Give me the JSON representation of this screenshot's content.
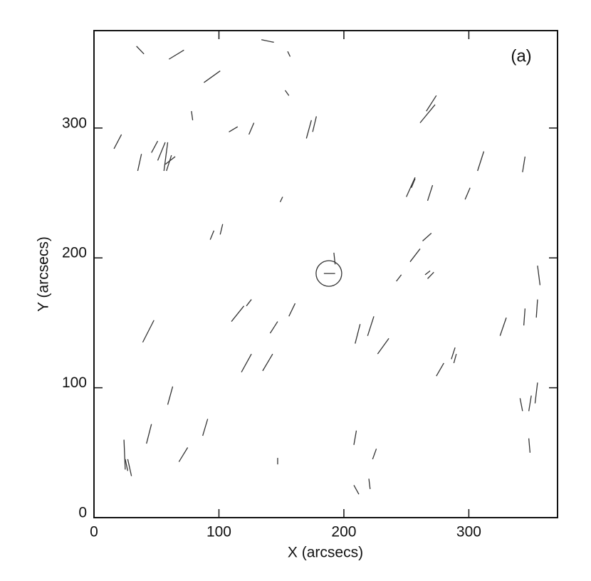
{
  "chart_data": {
    "type": "segments",
    "x_label": "X (arcsecs)",
    "y_label": "Y (arcsecs)",
    "annotation": "(a)",
    "xlim": [
      0,
      371
    ],
    "ylim": [
      0,
      375
    ],
    "xticks": [
      0,
      100,
      200,
      300
    ],
    "yticks": [
      0,
      100,
      200,
      300
    ],
    "color": "#333333",
    "circle": {
      "x": 188,
      "y": 188
    },
    "segments": {
      "x1": [
        34,
        60,
        134,
        155,
        88,
        153,
        78,
        108,
        124,
        170,
        175,
        261,
        266,
        16,
        35,
        46,
        51,
        56,
        58,
        57,
        149,
        250,
        254,
        267,
        297,
        307,
        343,
        93,
        101,
        253,
        263,
        192,
        184,
        242,
        265,
        267,
        355,
        110,
        122,
        141,
        156,
        209,
        219,
        227,
        39,
        325,
        344,
        354,
        118,
        135,
        274,
        286,
        288,
        59,
        341,
        348,
        353,
        42,
        87,
        68,
        24,
        25,
        27,
        147,
        208,
        223,
        208,
        220,
        348
      ],
      "y1": [
        363,
        353,
        368,
        359,
        335,
        329,
        313,
        297,
        295,
        292,
        297,
        304,
        313,
        284,
        267,
        281,
        275,
        267,
        267,
        272,
        243,
        247,
        254,
        244,
        245,
        267,
        266,
        214,
        218,
        197,
        213,
        204,
        188,
        182,
        187,
        184,
        194,
        151,
        163,
        142,
        155,
        134,
        140,
        126,
        135,
        140,
        148,
        154,
        112,
        113,
        109,
        122,
        119,
        87,
        92,
        82,
        88,
        57,
        63,
        43,
        60,
        45,
        45,
        46,
        56,
        45,
        25,
        30,
        61
      ],
      "x2": [
        40,
        72,
        144,
        157,
        101,
        156,
        79,
        115,
        128,
        174,
        178,
        273,
        274,
        22,
        38,
        51,
        57,
        59,
        62,
        65,
        151,
        257,
        257,
        271,
        301,
        312,
        345,
        96,
        103,
        261,
        270,
        193,
        193,
        246,
        269,
        272,
        357,
        120,
        126,
        147,
        161,
        213,
        224,
        236,
        48,
        330,
        345,
        355,
        126,
        143,
        280,
        289,
        290,
        63,
        343,
        350,
        355,
        46,
        91,
        75,
        25,
        27,
        30,
        147,
        210,
        226,
        212,
        221,
        349
      ],
      "y2": [
        357,
        360,
        366,
        355,
        344,
        325,
        306,
        301,
        304,
        306,
        309,
        318,
        325,
        295,
        280,
        290,
        289,
        289,
        279,
        278,
        247,
        262,
        261,
        256,
        254,
        282,
        278,
        221,
        226,
        207,
        219,
        195,
        188,
        187,
        190,
        189,
        179,
        163,
        168,
        151,
        165,
        149,
        155,
        138,
        152,
        154,
        161,
        168,
        126,
        126,
        119,
        131,
        126,
        101,
        82,
        94,
        104,
        72,
        76,
        54,
        37,
        36,
        32,
        41,
        67,
        53,
        18,
        22,
        50
      ]
    }
  }
}
